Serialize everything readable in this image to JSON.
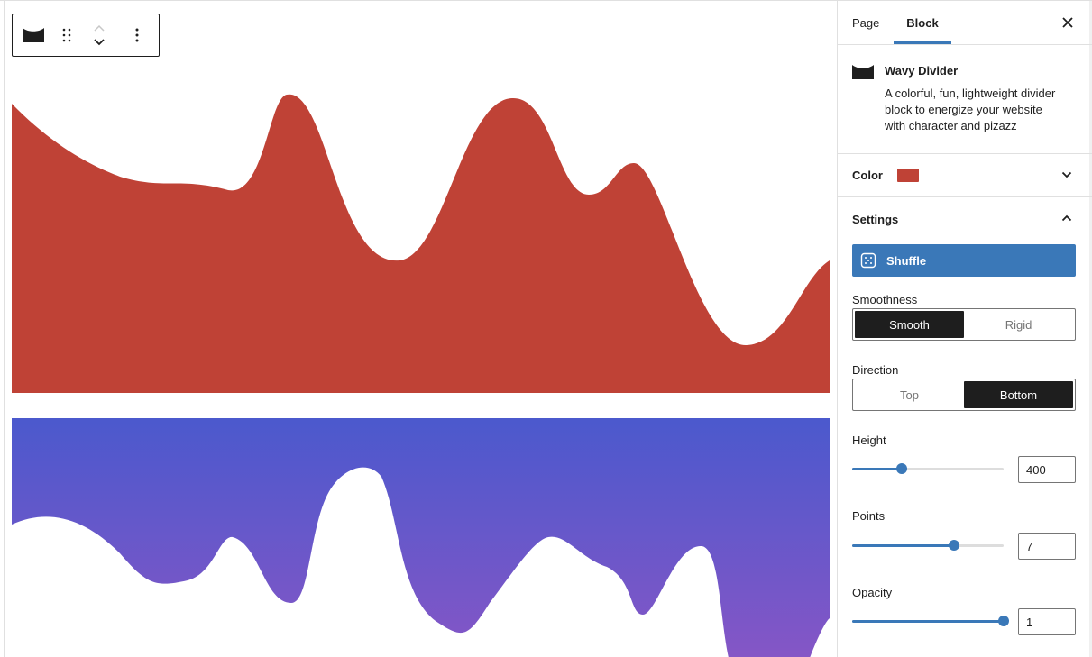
{
  "colors": {
    "divider_red": "#bf4236",
    "gradient_top": "#4b59cd",
    "gradient_bottom": "#8556c6",
    "accent": "#3a78b8",
    "dark": "#1e1e1e"
  },
  "toolbar": {
    "block_icon": "wavy-divider-icon",
    "drag_icon": "drag-handle-icon",
    "move_up_icon": "chevron-up-icon",
    "move_down_icon": "chevron-down-icon",
    "more_icon": "more-vertical-icon"
  },
  "sidebar": {
    "tabs": [
      {
        "label": "Page",
        "active": false
      },
      {
        "label": "Block",
        "active": true
      }
    ],
    "close_icon": "close-icon",
    "block": {
      "title": "Wavy Divider",
      "description": "A colorful, fun, lightweight divider block to energize your website with character and pizazz"
    },
    "color_panel": {
      "title": "Color",
      "swatch": "#bf4236",
      "expanded": false
    },
    "settings_panel": {
      "title": "Settings",
      "expanded": true,
      "shuffle_label": "Shuffle",
      "smoothness": {
        "label": "Smoothness",
        "options": [
          "Smooth",
          "Rigid"
        ],
        "selected": "Smooth"
      },
      "direction": {
        "label": "Direction",
        "options": [
          "Top",
          "Bottom"
        ],
        "selected": "Bottom"
      },
      "height": {
        "label": "Height",
        "value": "400",
        "fraction": 0.33
      },
      "points": {
        "label": "Points",
        "value": "7",
        "fraction": 0.67
      },
      "opacity": {
        "label": "Opacity",
        "value": "1",
        "fraction": 1.0
      }
    }
  }
}
